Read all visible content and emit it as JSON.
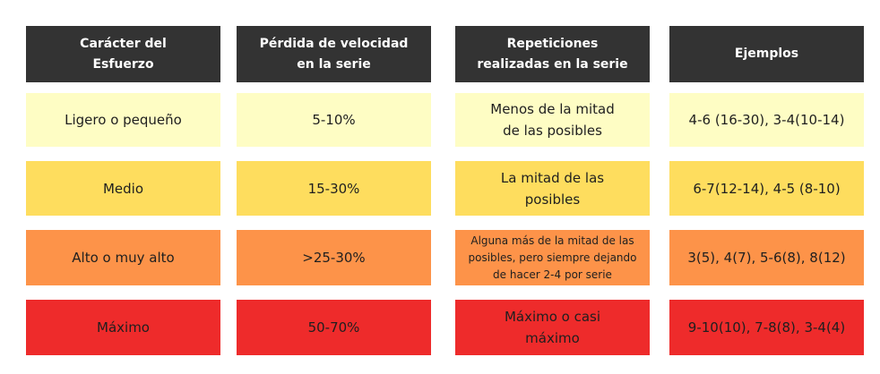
{
  "headers": [
    "Carácter del\nEsfuerzo",
    "Pérdida de velocidad\nen la serie",
    "Repeticiones\nrealizadas en la serie",
    "Ejemplos"
  ],
  "rows": [
    {
      "caracter": "Ligero o pequeño",
      "perdida": "5-10%",
      "repeticiones": "Menos de la mitad\nde las posibles",
      "ejemplos": "4-6 (16-30), 3-4(10-14)",
      "color": "#fefdc4"
    },
    {
      "caracter": "Medio",
      "perdida": "15-30%",
      "repeticiones": "La mitad de las\nposibles",
      "ejemplos": "6-7(12-14), 4-5 (8-10)",
      "color": "#fedd5e"
    },
    {
      "caracter": "Alto o muy alto",
      "perdida": ">25-30%",
      "repeticiones": "Alguna más de la mitad de las\nposibles, pero siempre dejando\nde hacer 2-4 por serie",
      "ejemplos": "3(5), 4(7), 5-6(8), 8(12)",
      "color": "#fd9349"
    },
    {
      "caracter": "Máximo",
      "perdida": "50-70%",
      "repeticiones": "Máximo o casi\nmáximo",
      "ejemplos": "9-10(10), 7-8(8), 3-4(4)",
      "color": "#ee2b2b"
    }
  ],
  "header_color": "#333333"
}
